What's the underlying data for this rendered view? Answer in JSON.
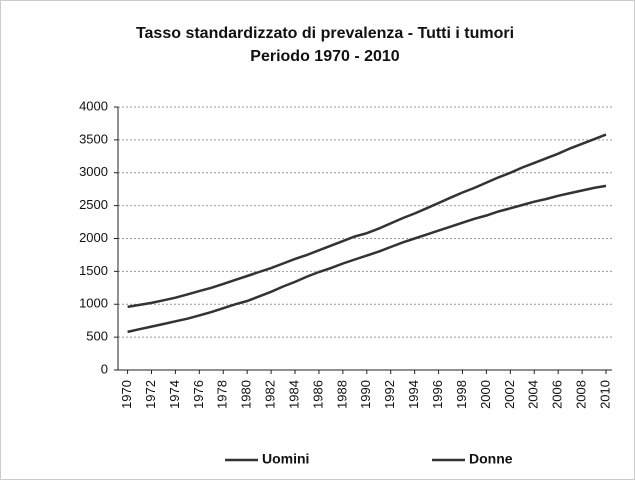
{
  "chart_data": {
    "type": "line",
    "title": "Tasso standardizzato di prevalenza - Tutti i tumori",
    "subtitle": "Periodo 1970 - 2010",
    "x": [
      1970,
      1971,
      1972,
      1973,
      1974,
      1975,
      1976,
      1977,
      1978,
      1979,
      1980,
      1981,
      1982,
      1983,
      1984,
      1985,
      1986,
      1987,
      1988,
      1989,
      1990,
      1991,
      1992,
      1993,
      1994,
      1995,
      1996,
      1997,
      1998,
      1999,
      2000,
      2001,
      2002,
      2003,
      2004,
      2005,
      2006,
      2007,
      2008,
      2009,
      2010
    ],
    "series": [
      {
        "name": "Uomini",
        "color": "#333333",
        "values": [
          580,
          620,
          660,
          700,
          740,
          780,
          830,
          880,
          940,
          1000,
          1050,
          1120,
          1190,
          1270,
          1340,
          1420,
          1490,
          1550,
          1620,
          1680,
          1740,
          1800,
          1870,
          1940,
          2000,
          2060,
          2120,
          2180,
          2240,
          2300,
          2350,
          2410,
          2460,
          2510,
          2560,
          2600,
          2650,
          2690,
          2730,
          2770,
          2800
        ]
      },
      {
        "name": "Donne",
        "color": "#333333",
        "values": [
          960,
          990,
          1020,
          1060,
          1100,
          1150,
          1200,
          1250,
          1310,
          1370,
          1430,
          1490,
          1550,
          1620,
          1690,
          1750,
          1820,
          1890,
          1960,
          2030,
          2080,
          2150,
          2230,
          2310,
          2380,
          2460,
          2540,
          2620,
          2700,
          2770,
          2850,
          2930,
          3000,
          3080,
          3150,
          3220,
          3290,
          3370,
          3440,
          3510,
          3580
        ]
      }
    ],
    "xlim": [
      1969.2,
      2010.5
    ],
    "xticks": [
      1970,
      1972,
      1974,
      1976,
      1978,
      1980,
      1982,
      1984,
      1986,
      1988,
      1990,
      1992,
      1994,
      1996,
      1998,
      2000,
      2002,
      2004,
      2006,
      2008,
      2010
    ],
    "ylim": [
      0,
      4000
    ],
    "yticks": [
      0,
      500,
      1000,
      1500,
      2000,
      2500,
      3000,
      3500,
      4000
    ],
    "grid": true,
    "legend": "bottom"
  }
}
